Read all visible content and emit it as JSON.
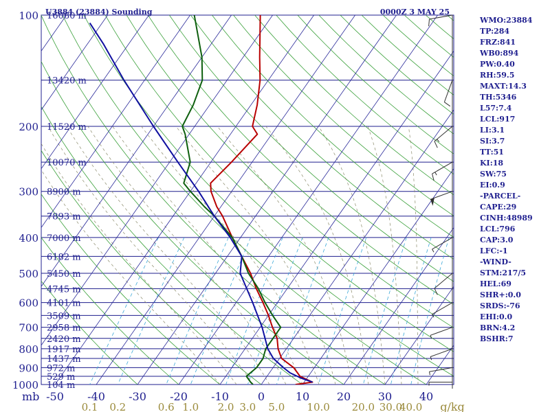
{
  "header": {
    "station": "U3884 (23884) Sounding",
    "time": "0000Z  3 MAY 25"
  },
  "chart_data": {
    "type": "line",
    "title": "",
    "pressure_unit": "mb",
    "mixing_ratio_unit": "g/kg",
    "pressure_levels": [
      100,
      200,
      300,
      400,
      500,
      600,
      700,
      800,
      900,
      1000
    ],
    "pressure_tick_labels": [
      "100",
      "200",
      "300",
      "400",
      "500",
      "600",
      "700",
      "800",
      "900",
      "1000"
    ],
    "temperature_ticks": [
      -50,
      -40,
      -30,
      -20,
      -10,
      0,
      10,
      20,
      30,
      40
    ],
    "temperature_tick_labels": [
      "-50",
      "-40",
      "-30",
      "-20",
      "-10",
      "0",
      "10",
      "20",
      "30",
      "40"
    ],
    "mixing_ratio_ticks": [
      0.1,
      0.2,
      0.6,
      1.0,
      2.0,
      3.0,
      5.0,
      10.0,
      20.0,
      30.0,
      40.0
    ],
    "mixing_ratio_tick_labels": [
      "0.1",
      "0.2",
      "0.6",
      "1.0",
      "2.0",
      "3.0",
      "5.0",
      "10.0",
      "20.0",
      "30.0",
      "40.0"
    ],
    "height_labels": [
      {
        "p": 100,
        "label": "16080 m"
      },
      {
        "p": 150,
        "label": "13420 m"
      },
      {
        "p": 200,
        "label": "11520 m"
      },
      {
        "p": 250,
        "label": "10070 m"
      },
      {
        "p": 300,
        "label": "8900 m"
      },
      {
        "p": 350,
        "label": "7893 m"
      },
      {
        "p": 400,
        "label": "7000 m"
      },
      {
        "p": 450,
        "label": "6182 m"
      },
      {
        "p": 500,
        "label": "5450 m"
      },
      {
        "p": 550,
        "label": "4745 m"
      },
      {
        "p": 600,
        "label": "4101 m"
      },
      {
        "p": 650,
        "label": "3509 m"
      },
      {
        "p": 700,
        "label": "2958 m"
      },
      {
        "p": 750,
        "label": "2420 m"
      },
      {
        "p": 800,
        "label": "1917 m"
      },
      {
        "p": 850,
        "label": "1437 m"
      },
      {
        "p": 900,
        "label": "972 m"
      },
      {
        "p": 950,
        "label": "529 m"
      },
      {
        "p": 1000,
        "label": "104 m"
      }
    ],
    "series": [
      {
        "color": "#b80000",
        "points": [
          {
            "p": 1000,
            "t": 8.3
          },
          {
            "p": 985,
            "t": 12.0
          },
          {
            "p": 950,
            "t": 8.0
          },
          {
            "p": 900,
            "t": 5.0
          },
          {
            "p": 850,
            "t": 0.5
          },
          {
            "p": 800,
            "t": -2.0
          },
          {
            "p": 750,
            "t": -4.0
          },
          {
            "p": 700,
            "t": -7.0
          },
          {
            "p": 650,
            "t": -10.0
          },
          {
            "p": 600,
            "t": -13.5
          },
          {
            "p": 550,
            "t": -17.5
          },
          {
            "p": 500,
            "t": -21.5
          },
          {
            "p": 450,
            "t": -26.5
          },
          {
            "p": 400,
            "t": -32.0
          },
          {
            "p": 350,
            "t": -38.0
          },
          {
            "p": 330,
            "t": -41.0
          },
          {
            "p": 300,
            "t": -45.0
          },
          {
            "p": 285,
            "t": -46.5
          },
          {
            "p": 250,
            "t": -45.0
          },
          {
            "p": 210,
            "t": -43.5
          },
          {
            "p": 200,
            "t": -46.0
          },
          {
            "p": 175,
            "t": -48.5
          },
          {
            "p": 150,
            "t": -52.0
          },
          {
            "p": 130,
            "t": -56.0
          },
          {
            "p": 100,
            "t": -63.0
          }
        ]
      },
      {
        "color": "#0e5f0e",
        "points": [
          {
            "p": 1000,
            "t": -2.0
          },
          {
            "p": 985,
            "t": -3.0
          },
          {
            "p": 950,
            "t": -5.0
          },
          {
            "p": 900,
            "t": -4.0
          },
          {
            "p": 850,
            "t": -4.0
          },
          {
            "p": 800,
            "t": -5.0
          },
          {
            "p": 750,
            "t": -5.0
          },
          {
            "p": 700,
            "t": -5.0
          },
          {
            "p": 650,
            "t": -9.0
          },
          {
            "p": 600,
            "t": -13.0
          },
          {
            "p": 550,
            "t": -17.0
          },
          {
            "p": 500,
            "t": -22.0
          },
          {
            "p": 450,
            "t": -26.5
          },
          {
            "p": 400,
            "t": -32.0
          },
          {
            "p": 350,
            "t": -40.0
          },
          {
            "p": 330,
            "t": -44.0
          },
          {
            "p": 300,
            "t": -50.0
          },
          {
            "p": 285,
            "t": -53.0
          },
          {
            "p": 250,
            "t": -55.0
          },
          {
            "p": 210,
            "t": -61.0
          },
          {
            "p": 200,
            "t": -63.0
          },
          {
            "p": 175,
            "t": -64.0
          },
          {
            "p": 150,
            "t": -66.0
          },
          {
            "p": 130,
            "t": -70.0
          },
          {
            "p": 100,
            "t": -79.0
          }
        ]
      },
      {
        "color": "#1010a0",
        "points": [
          {
            "p": 985,
            "t": 12.0
          },
          {
            "p": 960,
            "t": 8.5
          },
          {
            "p": 930,
            "t": 5.0
          },
          {
            "p": 900,
            "t": 2.5
          },
          {
            "p": 850,
            "t": -1.5
          },
          {
            "p": 800,
            "t": -4.5
          },
          {
            "p": 700,
            "t": -9.5
          },
          {
            "p": 600,
            "t": -16.0
          },
          {
            "p": 500,
            "t": -24.0
          },
          {
            "p": 450,
            "t": -26.5
          },
          {
            "p": 400,
            "t": -32.5
          },
          {
            "p": 350,
            "t": -40.0
          },
          {
            "p": 300,
            "t": -48.0
          },
          {
            "p": 250,
            "t": -58.0
          },
          {
            "p": 200,
            "t": -70.0
          },
          {
            "p": 150,
            "t": -85.0
          },
          {
            "p": 120,
            "t": -96.0
          },
          {
            "p": 105,
            "t": -103.0
          }
        ]
      }
    ],
    "wind_barbs": [
      {
        "p": 985,
        "dir": 270,
        "spd": 5
      },
      {
        "p": 900,
        "dir": 260,
        "spd": 5
      },
      {
        "p": 800,
        "dir": 250,
        "spd": 5
      },
      {
        "p": 700,
        "dir": 250,
        "spd": 5
      },
      {
        "p": 600,
        "dir": 240,
        "spd": 5
      },
      {
        "p": 500,
        "dir": 230,
        "spd": 10
      },
      {
        "p": 400,
        "dir": 240,
        "spd": 5
      },
      {
        "p": 300,
        "dir": 250,
        "spd": 50
      },
      {
        "p": 250,
        "dir": 240,
        "spd": 15
      },
      {
        "p": 200,
        "dir": 230,
        "spd": 15
      },
      {
        "p": 150,
        "dir": 200,
        "spd": 10
      },
      {
        "p": 100,
        "dir": 260,
        "spd": 10
      }
    ]
  },
  "indices": [
    "WMO:23884",
    "TP:284",
    "FRZ:841",
    "WB0:894",
    "PW:0.40",
    "RH:59.5",
    "MAXT:14.3",
    "TH:5346",
    "L57:7.4",
    "LCL:917",
    "LI:3.1",
    "SI:3.7",
    "TT:51",
    "KI:18",
    "SW:75",
    "EI:0.9",
    "-PARCEL-",
    "CAPE:29",
    "CINH:48989",
    "LCL:796",
    "CAP:3.0",
    "LFC:-1",
    "-WIND-",
    "STM:217/5",
    "HEL:69",
    "SHR+:0.0",
    "SRDS:-76",
    "EHI:0.0",
    "BRN:4.2",
    "BSHR:7"
  ]
}
